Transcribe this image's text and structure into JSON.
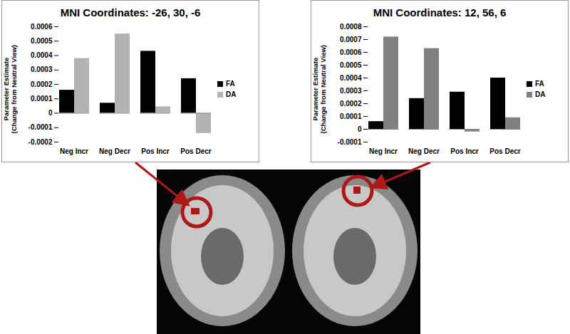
{
  "chart_data": [
    {
      "type": "bar",
      "title": "MNI Coordinates: -26, 30, -6",
      "y_label": "Parameter Estimate\n(Change from Neutral View)",
      "categories": [
        "Neg Incr",
        "Neg Decr",
        "Pos Incr",
        "Pos Decr"
      ],
      "series": [
        {
          "name": "FA",
          "color": "#000000",
          "values": [
            0.00016,
            7e-05,
            0.00043,
            0.00024
          ]
        },
        {
          "name": "DA",
          "color": "#b3b3b3",
          "values": [
            0.00038,
            0.00055,
            4.5e-05,
            -0.00014
          ]
        }
      ],
      "ylim": [
        -0.0002,
        0.0006
      ],
      "yticks": [
        -0.0002,
        -0.0001,
        0,
        0.0001,
        0.0002,
        0.0003,
        0.0004,
        0.0005,
        0.0006
      ],
      "legend": "right"
    },
    {
      "type": "bar",
      "title": "MNI Coordinates: 12, 56, 6",
      "y_label": "Parameter Estimate\n(Change from Neutral View)",
      "categories": [
        "Neg Incr",
        "Neg Decr",
        "Pos Incr",
        "Pos Decr"
      ],
      "series": [
        {
          "name": "FA",
          "color": "#000000",
          "values": [
            6e-05,
            0.00024,
            0.00029,
            0.0004
          ]
        },
        {
          "name": "DA",
          "color": "#808080",
          "values": [
            0.00072,
            0.00063,
            -2e-05,
            9e-05
          ]
        }
      ],
      "ylim": [
        -0.0001,
        0.0008
      ],
      "yticks": [
        -0.0001,
        0,
        0.0001,
        0.0002,
        0.0003,
        0.0004,
        0.0005,
        0.0006,
        0.0007,
        0.0008
      ],
      "legend": "right"
    }
  ]
}
